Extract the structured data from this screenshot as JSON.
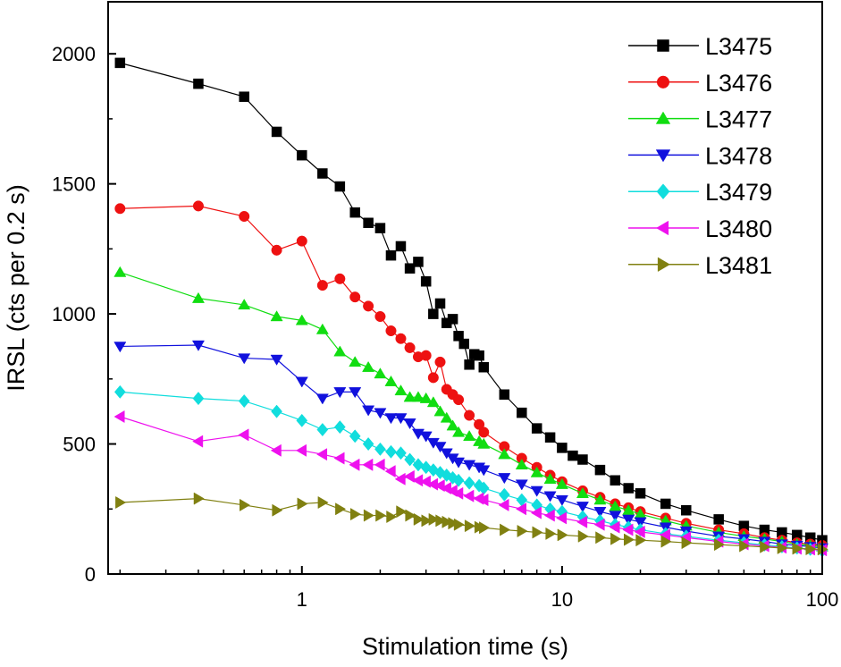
{
  "chart_data": {
    "type": "line",
    "title": "",
    "xlabel": "Stimulation time (s)",
    "ylabel": "IRSL (cts per 0.2 s)",
    "xscale": "log",
    "xlim": [
      0.18,
      100
    ],
    "ylim": [
      0,
      2200
    ],
    "x_ticks": [
      1,
      10,
      100
    ],
    "x_tick_labels": [
      "1",
      "10",
      "100"
    ],
    "y_ticks": [
      0,
      500,
      1000,
      1500,
      2000
    ],
    "y_tick_labels": [
      "0",
      "500",
      "1000",
      "1500",
      "2000"
    ],
    "legend_position": "top-right",
    "grid": false,
    "series": [
      {
        "name": "L3475",
        "color": "#000000",
        "marker": "square",
        "points": [
          [
            0.2,
            1965
          ],
          [
            0.4,
            1885
          ],
          [
            0.6,
            1835
          ],
          [
            0.8,
            1700
          ],
          [
            1.0,
            1610
          ],
          [
            1.2,
            1540
          ],
          [
            1.4,
            1490
          ],
          [
            1.6,
            1390
          ],
          [
            1.8,
            1350
          ],
          [
            2.0,
            1330
          ],
          [
            2.2,
            1225
          ],
          [
            2.4,
            1260
          ],
          [
            2.6,
            1175
          ],
          [
            2.8,
            1200
          ],
          [
            3.0,
            1125
          ],
          [
            3.2,
            1000
          ],
          [
            3.4,
            1040
          ],
          [
            3.6,
            965
          ],
          [
            3.8,
            980
          ],
          [
            4.0,
            915
          ],
          [
            4.2,
            885
          ],
          [
            4.4,
            805
          ],
          [
            4.6,
            845
          ],
          [
            4.8,
            840
          ],
          [
            5.0,
            795
          ],
          [
            6,
            690
          ],
          [
            7,
            620
          ],
          [
            8,
            560
          ],
          [
            9,
            525
          ],
          [
            10,
            485
          ],
          [
            11,
            455
          ],
          [
            12,
            440
          ],
          [
            14,
            400
          ],
          [
            16,
            360
          ],
          [
            18,
            330
          ],
          [
            20,
            310
          ],
          [
            25,
            270
          ],
          [
            30,
            245
          ],
          [
            40,
            210
          ],
          [
            50,
            185
          ],
          [
            60,
            170
          ],
          [
            70,
            160
          ],
          [
            80,
            150
          ],
          [
            90,
            140
          ],
          [
            100,
            130
          ]
        ]
      },
      {
        "name": "L3476",
        "color": "#ee1111",
        "marker": "circle",
        "points": [
          [
            0.2,
            1405
          ],
          [
            0.4,
            1415
          ],
          [
            0.6,
            1375
          ],
          [
            0.8,
            1245
          ],
          [
            1.0,
            1280
          ],
          [
            1.2,
            1110
          ],
          [
            1.4,
            1135
          ],
          [
            1.6,
            1065
          ],
          [
            1.8,
            1030
          ],
          [
            2.0,
            990
          ],
          [
            2.2,
            935
          ],
          [
            2.4,
            905
          ],
          [
            2.6,
            870
          ],
          [
            2.8,
            835
          ],
          [
            3.0,
            840
          ],
          [
            3.2,
            755
          ],
          [
            3.4,
            815
          ],
          [
            3.6,
            710
          ],
          [
            3.8,
            690
          ],
          [
            4.0,
            670
          ],
          [
            4.4,
            610
          ],
          [
            4.8,
            575
          ],
          [
            5.0,
            545
          ],
          [
            6,
            490
          ],
          [
            7,
            445
          ],
          [
            8,
            410
          ],
          [
            9,
            380
          ],
          [
            10,
            355
          ],
          [
            12,
            320
          ],
          [
            14,
            295
          ],
          [
            16,
            270
          ],
          [
            18,
            255
          ],
          [
            20,
            240
          ],
          [
            25,
            215
          ],
          [
            30,
            195
          ],
          [
            40,
            170
          ],
          [
            50,
            155
          ],
          [
            60,
            140
          ],
          [
            70,
            130
          ],
          [
            80,
            120
          ],
          [
            90,
            115
          ],
          [
            100,
            110
          ]
        ]
      },
      {
        "name": "L3477",
        "color": "#11dd11",
        "marker": "triangle-up",
        "points": [
          [
            0.2,
            1160
          ],
          [
            0.4,
            1060
          ],
          [
            0.6,
            1035
          ],
          [
            0.8,
            990
          ],
          [
            1.0,
            975
          ],
          [
            1.2,
            940
          ],
          [
            1.4,
            855
          ],
          [
            1.6,
            815
          ],
          [
            1.8,
            795
          ],
          [
            2.0,
            770
          ],
          [
            2.2,
            740
          ],
          [
            2.4,
            705
          ],
          [
            2.6,
            680
          ],
          [
            2.8,
            680
          ],
          [
            3.0,
            675
          ],
          [
            3.2,
            660
          ],
          [
            3.4,
            625
          ],
          [
            3.6,
            600
          ],
          [
            3.8,
            570
          ],
          [
            4.0,
            545
          ],
          [
            4.4,
            530
          ],
          [
            4.8,
            510
          ],
          [
            5.0,
            500
          ],
          [
            6,
            460
          ],
          [
            7,
            420
          ],
          [
            8,
            390
          ],
          [
            9,
            365
          ],
          [
            10,
            345
          ],
          [
            12,
            310
          ],
          [
            14,
            285
          ],
          [
            16,
            260
          ],
          [
            18,
            245
          ],
          [
            20,
            230
          ],
          [
            25,
            205
          ],
          [
            30,
            185
          ],
          [
            40,
            160
          ],
          [
            50,
            145
          ],
          [
            60,
            135
          ],
          [
            70,
            125
          ],
          [
            80,
            115
          ],
          [
            90,
            110
          ],
          [
            100,
            105
          ]
        ]
      },
      {
        "name": "L3478",
        "color": "#1111dd",
        "marker": "triangle-down",
        "points": [
          [
            0.2,
            875
          ],
          [
            0.4,
            880
          ],
          [
            0.6,
            830
          ],
          [
            0.8,
            825
          ],
          [
            1.0,
            740
          ],
          [
            1.2,
            675
          ],
          [
            1.4,
            700
          ],
          [
            1.6,
            700
          ],
          [
            1.8,
            630
          ],
          [
            2.0,
            620
          ],
          [
            2.2,
            600
          ],
          [
            2.4,
            600
          ],
          [
            2.6,
            580
          ],
          [
            2.8,
            540
          ],
          [
            3.0,
            530
          ],
          [
            3.2,
            505
          ],
          [
            3.4,
            490
          ],
          [
            3.6,
            465
          ],
          [
            3.8,
            445
          ],
          [
            4.0,
            430
          ],
          [
            4.4,
            420
          ],
          [
            4.8,
            410
          ],
          [
            5.0,
            400
          ],
          [
            6,
            370
          ],
          [
            7,
            345
          ],
          [
            8,
            320
          ],
          [
            9,
            300
          ],
          [
            10,
            285
          ],
          [
            12,
            260
          ],
          [
            14,
            240
          ],
          [
            16,
            225
          ],
          [
            18,
            210
          ],
          [
            20,
            200
          ],
          [
            25,
            180
          ],
          [
            30,
            165
          ],
          [
            40,
            145
          ],
          [
            50,
            135
          ],
          [
            60,
            125
          ],
          [
            70,
            115
          ],
          [
            80,
            110
          ],
          [
            90,
            105
          ],
          [
            100,
            100
          ]
        ]
      },
      {
        "name": "L3479",
        "color": "#11dddd",
        "marker": "diamond",
        "points": [
          [
            0.2,
            700
          ],
          [
            0.4,
            675
          ],
          [
            0.6,
            665
          ],
          [
            0.8,
            625
          ],
          [
            1.0,
            590
          ],
          [
            1.2,
            555
          ],
          [
            1.4,
            565
          ],
          [
            1.6,
            530
          ],
          [
            1.8,
            500
          ],
          [
            2.0,
            480
          ],
          [
            2.2,
            470
          ],
          [
            2.4,
            465
          ],
          [
            2.6,
            440
          ],
          [
            2.8,
            420
          ],
          [
            3.0,
            410
          ],
          [
            3.2,
            400
          ],
          [
            3.4,
            390
          ],
          [
            3.6,
            380
          ],
          [
            3.8,
            370
          ],
          [
            4.0,
            360
          ],
          [
            4.4,
            350
          ],
          [
            4.8,
            340
          ],
          [
            5.0,
            330
          ],
          [
            6,
            305
          ],
          [
            7,
            285
          ],
          [
            8,
            265
          ],
          [
            9,
            250
          ],
          [
            10,
            240
          ],
          [
            12,
            220
          ],
          [
            14,
            205
          ],
          [
            16,
            190
          ],
          [
            18,
            180
          ],
          [
            20,
            170
          ],
          [
            25,
            155
          ],
          [
            30,
            145
          ],
          [
            40,
            130
          ],
          [
            50,
            120
          ],
          [
            60,
            112
          ],
          [
            70,
            105
          ],
          [
            80,
            100
          ],
          [
            90,
            95
          ],
          [
            100,
            90
          ]
        ]
      },
      {
        "name": "L3480",
        "color": "#ee11ee",
        "marker": "triangle-left",
        "points": [
          [
            0.2,
            605
          ],
          [
            0.4,
            510
          ],
          [
            0.6,
            535
          ],
          [
            0.8,
            475
          ],
          [
            1.0,
            475
          ],
          [
            1.2,
            460
          ],
          [
            1.4,
            445
          ],
          [
            1.6,
            420
          ],
          [
            1.8,
            420
          ],
          [
            2.0,
            420
          ],
          [
            2.2,
            395
          ],
          [
            2.4,
            365
          ],
          [
            2.6,
            375
          ],
          [
            2.8,
            360
          ],
          [
            3.0,
            355
          ],
          [
            3.2,
            345
          ],
          [
            3.4,
            340
          ],
          [
            3.6,
            330
          ],
          [
            3.8,
            320
          ],
          [
            4.0,
            310
          ],
          [
            4.4,
            300
          ],
          [
            4.8,
            290
          ],
          [
            5.0,
            285
          ],
          [
            6,
            265
          ],
          [
            7,
            250
          ],
          [
            8,
            235
          ],
          [
            9,
            225
          ],
          [
            10,
            215
          ],
          [
            12,
            200
          ],
          [
            14,
            190
          ],
          [
            16,
            180
          ],
          [
            18,
            170
          ],
          [
            20,
            162
          ],
          [
            25,
            150
          ],
          [
            30,
            140
          ],
          [
            40,
            125
          ],
          [
            50,
            115
          ],
          [
            60,
            108
          ],
          [
            70,
            102
          ],
          [
            80,
            98
          ],
          [
            90,
            95
          ],
          [
            100,
            92
          ]
        ]
      },
      {
        "name": "L3481",
        "color": "#808011",
        "marker": "triangle-right",
        "points": [
          [
            0.2,
            275
          ],
          [
            0.4,
            290
          ],
          [
            0.6,
            265
          ],
          [
            0.8,
            245
          ],
          [
            1.0,
            270
          ],
          [
            1.2,
            275
          ],
          [
            1.4,
            250
          ],
          [
            1.6,
            230
          ],
          [
            1.8,
            225
          ],
          [
            2.0,
            225
          ],
          [
            2.2,
            220
          ],
          [
            2.4,
            240
          ],
          [
            2.6,
            225
          ],
          [
            2.8,
            210
          ],
          [
            3.0,
            205
          ],
          [
            3.2,
            210
          ],
          [
            3.4,
            205
          ],
          [
            3.6,
            200
          ],
          [
            3.8,
            195
          ],
          [
            4.0,
            190
          ],
          [
            4.4,
            185
          ],
          [
            4.8,
            180
          ],
          [
            5.0,
            178
          ],
          [
            6,
            170
          ],
          [
            7,
            165
          ],
          [
            8,
            160
          ],
          [
            9,
            155
          ],
          [
            10,
            150
          ],
          [
            12,
            145
          ],
          [
            14,
            140
          ],
          [
            16,
            135
          ],
          [
            18,
            132
          ],
          [
            20,
            130
          ],
          [
            25,
            125
          ],
          [
            30,
            120
          ],
          [
            40,
            113
          ],
          [
            50,
            108
          ],
          [
            60,
            104
          ],
          [
            70,
            100
          ],
          [
            80,
            98
          ],
          [
            90,
            96
          ],
          [
            100,
            95
          ]
        ]
      }
    ]
  }
}
